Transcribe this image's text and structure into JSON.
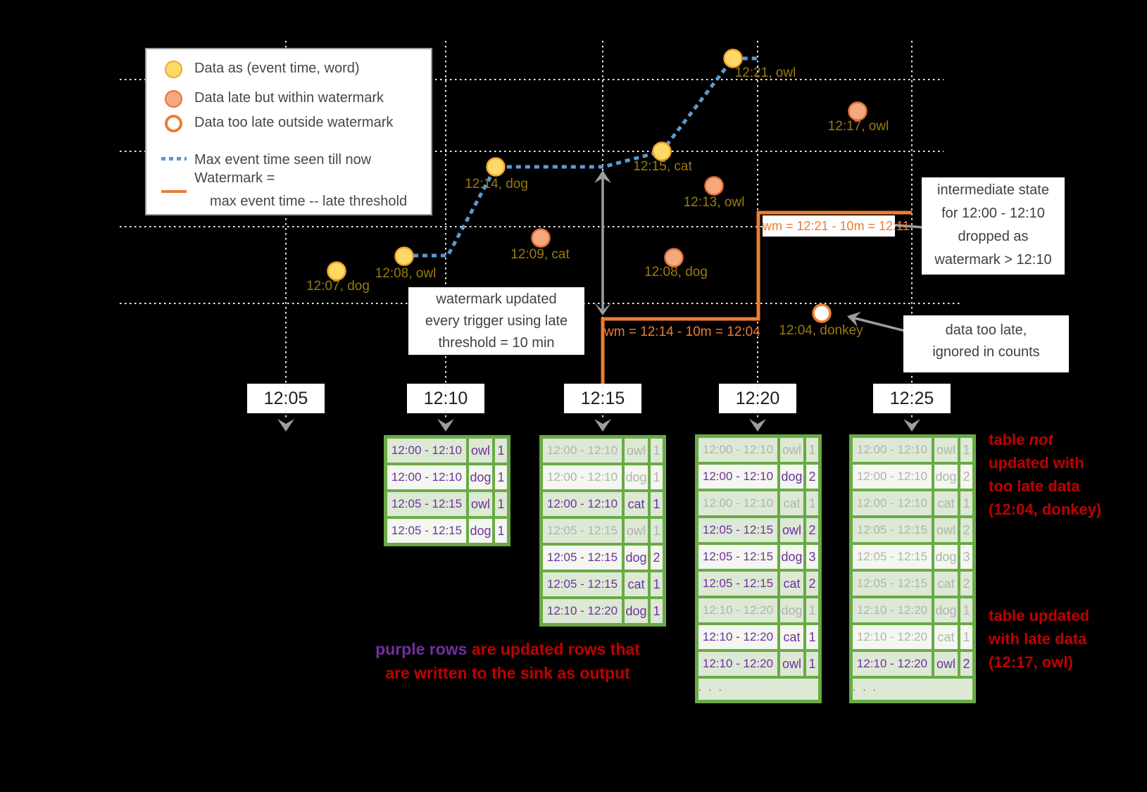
{
  "legend": {
    "items": [
      {
        "icon": "yellow-circle",
        "label": "Data as (event time, word)"
      },
      {
        "icon": "salmon-circle",
        "label": "Data late but within watermark"
      },
      {
        "icon": "open-orange-circle",
        "label": "Data too late outside watermark"
      },
      {
        "icon": "blue-dotted-line",
        "label": "Max event time seen till now"
      },
      {
        "icon": "orange-line",
        "label": "Watermark =",
        "label2": "max event time -- late threshold"
      }
    ]
  },
  "points": [
    {
      "label": "12:07, dog",
      "status": "on-time"
    },
    {
      "label": "12:08, owl",
      "status": "on-time"
    },
    {
      "label": "12:09, cat",
      "status": "late-within-watermark"
    },
    {
      "label": "12:14, dog",
      "status": "on-time"
    },
    {
      "label": "12:15, cat",
      "status": "on-time"
    },
    {
      "label": "12:13, owl",
      "status": "late-within-watermark"
    },
    {
      "label": "12:08, dog",
      "status": "late-within-watermark"
    },
    {
      "label": "12:21, owl",
      "status": "on-time"
    },
    {
      "label": "12:17, owl",
      "status": "late-within-watermark"
    },
    {
      "label": "12:04, donkey",
      "status": "too-late-outside-watermark"
    }
  ],
  "watermarks": {
    "wm1": "wm = 12:14 - 10m = 12:04",
    "wm2": "wm = 12:21 - 10m = 12:11"
  },
  "triggers": [
    "12:05",
    "12:10",
    "12:15",
    "12:20",
    "12:25"
  ],
  "callouts": {
    "watermark_updated": {
      "line1": "watermark updated",
      "line2": "every trigger using late",
      "line3": "threshold = 10 min"
    },
    "intermediate_state": {
      "line1": "intermediate state",
      "line2": "for 12:00 - 12:10",
      "line3": "dropped as",
      "line4": "watermark > 12:10"
    },
    "too_late": {
      "line1": "data too late,",
      "line2": "ignored in counts"
    }
  },
  "annotations": {
    "purple_rows": {
      "highlight": "purple rows",
      "line1_rest": " are updated rows that",
      "line2": "are written to the sink as output"
    },
    "not_updated": {
      "line1_plain": "table ",
      "line1_italic": "not",
      "line2": "updated with",
      "line3": "too late data",
      "line4": "(12:04, donkey)"
    },
    "updated_late": {
      "line1": "table updated",
      "line2": "with late data",
      "line3": "(12:17, owl)"
    }
  },
  "tables": [
    {
      "trigger": "12:10",
      "ellipsis": null,
      "rows": [
        {
          "window": "12:00 - 12:10",
          "word": "owl",
          "count": "1",
          "state": "updated",
          "bg": "tint"
        },
        {
          "window": "12:00 - 12:10",
          "word": "dog",
          "count": "1",
          "state": "updated",
          "bg": "bright"
        },
        {
          "window": "12:05 - 12:15",
          "word": "owl",
          "count": "1",
          "state": "updated",
          "bg": "tint"
        },
        {
          "window": "12:05 - 12:15",
          "word": "dog",
          "count": "1",
          "state": "updated",
          "bg": "bright"
        }
      ]
    },
    {
      "trigger": "12:15",
      "ellipsis": null,
      "rows": [
        {
          "window": "12:00 - 12:10",
          "word": "owl",
          "count": "1",
          "state": "old",
          "bg": "tint"
        },
        {
          "window": "12:00 - 12:10",
          "word": "dog",
          "count": "1",
          "state": "old",
          "bg": "bright"
        },
        {
          "window": "12:00 - 12:10",
          "word": "cat",
          "count": "1",
          "state": "updated",
          "bg": "tint"
        },
        {
          "window": "12:05 - 12:15",
          "word": "owl",
          "count": "1",
          "state": "old",
          "bg": "tint"
        },
        {
          "window": "12:05 - 12:15",
          "word": "dog",
          "count": "2",
          "state": "updated",
          "bg": "bright"
        },
        {
          "window": "12:05 - 12:15",
          "word": "cat",
          "count": "1",
          "state": "updated",
          "bg": "tint"
        },
        {
          "window": "12:10 - 12:20",
          "word": "dog",
          "count": "1",
          "state": "updated",
          "bg": "tint"
        }
      ]
    },
    {
      "trigger": "12:20",
      "ellipsis": ". . .",
      "rows": [
        {
          "window": "12:00 - 12:10",
          "word": "owl",
          "count": "1",
          "state": "old",
          "bg": "tint"
        },
        {
          "window": "12:00 - 12:10",
          "word": "dog",
          "count": "2",
          "state": "updated",
          "bg": "bright"
        },
        {
          "window": "12:00 - 12:10",
          "word": "cat",
          "count": "1",
          "state": "old",
          "bg": "tint"
        },
        {
          "window": "12:05 - 12:15",
          "word": "owl",
          "count": "2",
          "state": "updated",
          "bg": "tint"
        },
        {
          "window": "12:05 - 12:15",
          "word": "dog",
          "count": "3",
          "state": "updated",
          "bg": "bright"
        },
        {
          "window": "12:05 - 12:15",
          "word": "cat",
          "count": "2",
          "state": "updated",
          "bg": "tint"
        },
        {
          "window": "12:10 - 12:20",
          "word": "dog",
          "count": "1",
          "state": "old",
          "bg": "tint"
        },
        {
          "window": "12:10 - 12:20",
          "word": "cat",
          "count": "1",
          "state": "updated",
          "bg": "bright"
        },
        {
          "window": "12:10 - 12:20",
          "word": "owl",
          "count": "1",
          "state": "updated",
          "bg": "tint"
        }
      ]
    },
    {
      "trigger": "12:25",
      "ellipsis": ". . .",
      "rows": [
        {
          "window": "12:00 - 12:10",
          "word": "owl",
          "count": "1",
          "state": "old",
          "bg": "tint"
        },
        {
          "window": "12:00 - 12:10",
          "word": "dog",
          "count": "2",
          "state": "old",
          "bg": "bright"
        },
        {
          "window": "12:00 - 12:10",
          "word": "cat",
          "count": "1",
          "state": "old",
          "bg": "tint"
        },
        {
          "window": "12:05 - 12:15",
          "word": "owl",
          "count": "2",
          "state": "old",
          "bg": "tint"
        },
        {
          "window": "12:05 - 12:15",
          "word": "dog",
          "count": "3",
          "state": "old",
          "bg": "bright"
        },
        {
          "window": "12:05 - 12:15",
          "word": "cat",
          "count": "2",
          "state": "old",
          "bg": "tint"
        },
        {
          "window": "12:10 - 12:20",
          "word": "dog",
          "count": "1",
          "state": "old",
          "bg": "tint"
        },
        {
          "window": "12:10 - 12:20",
          "word": "cat",
          "count": "1",
          "state": "old",
          "bg": "bright"
        },
        {
          "window": "12:10 - 12:20",
          "word": "owl",
          "count": "2",
          "state": "updated",
          "bg": "tint"
        }
      ]
    }
  ],
  "colors": {
    "background": "#000000",
    "on_time_fill": "#FFD966",
    "on_time_stroke": "#F0A431",
    "late_fill": "#F4A87E",
    "late_stroke": "#E8703A",
    "too_late_stroke": "#ED7D31",
    "max_event_time_line": "#5B9BD5",
    "watermark_line": "#ED7D31",
    "point_label": "#9A7B0A",
    "table_green": "#6AAA46",
    "updated_purple": "#7030A0",
    "old_gray": "#B2B2B2",
    "annotation_red": "#C00000",
    "arrow_gray": "#9E9E9E"
  }
}
